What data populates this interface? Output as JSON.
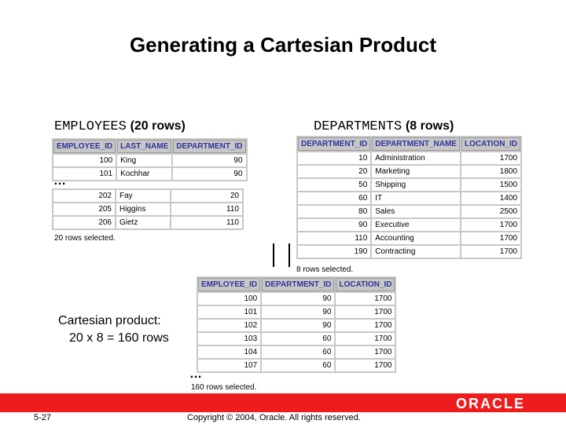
{
  "title": "Generating a Cartesian Product",
  "employees_label": {
    "name": "EMPLOYEES",
    "count": "(20 rows)"
  },
  "departments_label": {
    "name": "DEPARTMENTS",
    "count": "(8 rows)"
  },
  "employees_table": {
    "columns": [
      "EMPLOYEE_ID",
      "LAST_NAME",
      "DEPARTMENT_ID"
    ],
    "rows_top": [
      [
        "100",
        "King",
        "90"
      ],
      [
        "101",
        "Kochhar",
        "90"
      ]
    ],
    "rows_bottom": [
      [
        "202",
        "Fay",
        "20"
      ],
      [
        "205",
        "Higgins",
        "110"
      ],
      [
        "206",
        "Gietz",
        "110"
      ]
    ],
    "footer": "20 rows selected."
  },
  "departments_table": {
    "columns": [
      "DEPARTMENT_ID",
      "DEPARTMENT_NAME",
      "LOCATION_ID"
    ],
    "rows": [
      [
        "10",
        "Administration",
        "1700"
      ],
      [
        "20",
        "Marketing",
        "1800"
      ],
      [
        "50",
        "Shipping",
        "1500"
      ],
      [
        "60",
        "IT",
        "1400"
      ],
      [
        "80",
        "Sales",
        "2500"
      ],
      [
        "90",
        "Executive",
        "1700"
      ],
      [
        "110",
        "Accounting",
        "1700"
      ],
      [
        "190",
        "Contracting",
        "1700"
      ]
    ],
    "footer": "8 rows selected."
  },
  "product_table": {
    "columns": [
      "EMPLOYEE_ID",
      "DEPARTMENT_ID",
      "LOCATION_ID"
    ],
    "rows": [
      [
        "100",
        "90",
        "1700"
      ],
      [
        "101",
        "90",
        "1700"
      ],
      [
        "102",
        "90",
        "1700"
      ],
      [
        "103",
        "60",
        "1700"
      ],
      [
        "104",
        "60",
        "1700"
      ],
      [
        "107",
        "60",
        "1700"
      ]
    ],
    "footer": "160 rows selected."
  },
  "cartesian_note": {
    "line1": "Cartesian product:",
    "line2": "20 x 8 = 160 rows"
  },
  "ellipsis": "…",
  "slide_number": "5-27",
  "copyright": "Copyright © 2004, Oracle.  All rights reserved.",
  "logo_text": "ORACLE",
  "colors": {
    "accent_bar": "#ee1c1c",
    "header_text": "#30349b",
    "header_bg": "#c7c7c7"
  }
}
